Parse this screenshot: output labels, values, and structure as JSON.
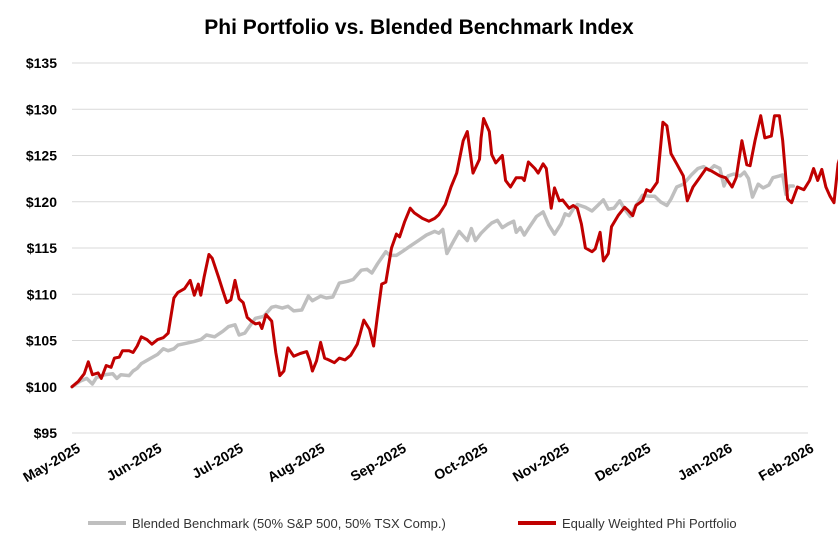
{
  "chart_data": {
    "type": "line",
    "title": "Phi Portfolio vs. Blended Benchmark Index",
    "xlabel": "",
    "ylabel": "",
    "ylim": [
      95,
      135
    ],
    "yticks": [
      95,
      100,
      105,
      110,
      115,
      120,
      125,
      130,
      135
    ],
    "ytick_labels": [
      "$95",
      "$100",
      "$105",
      "$110",
      "$115",
      "$120",
      "$125",
      "$130",
      "$135"
    ],
    "x_range": [
      0,
      9.55
    ],
    "x_ticks": [
      0,
      1,
      2,
      3,
      4,
      5,
      6,
      7,
      8,
      9
    ],
    "x_tick_labels": [
      "May-2025",
      "Jun-2025",
      "Jul-2025",
      "Aug-2025",
      "Sep-2025",
      "Oct-2025",
      "Nov-2025",
      "Dec-2025",
      "Jan-2026",
      "Feb-2026"
    ],
    "grid": true,
    "legend_position": "bottom",
    "series": [
      {
        "name": "Blended Benchmark (50% S&P 500, 50% TSX Comp.)",
        "color": "#bfbfbf",
        "points": [
          [
            0,
            100
          ],
          [
            0.1,
            100.6
          ],
          [
            0.18,
            100.9
          ],
          [
            0.25,
            100.3
          ],
          [
            0.3,
            101
          ],
          [
            0.4,
            101.3
          ],
          [
            0.5,
            101.4
          ],
          [
            0.55,
            100.9
          ],
          [
            0.6,
            101.3
          ],
          [
            0.7,
            101.2
          ],
          [
            0.75,
            101.7
          ],
          [
            0.8,
            102
          ],
          [
            0.85,
            102.5
          ],
          [
            0.95,
            103
          ],
          [
            1.05,
            103.5
          ],
          [
            1.12,
            104.1
          ],
          [
            1.18,
            103.9
          ],
          [
            1.25,
            104.1
          ],
          [
            1.3,
            104.5
          ],
          [
            1.4,
            104.7
          ],
          [
            1.5,
            104.9
          ],
          [
            1.58,
            105.1
          ],
          [
            1.65,
            105.6
          ],
          [
            1.75,
            105.4
          ],
          [
            1.85,
            106
          ],
          [
            1.92,
            106.5
          ],
          [
            2.0,
            106.7
          ],
          [
            2.05,
            105.6
          ],
          [
            2.12,
            105.8
          ],
          [
            2.2,
            106.8
          ],
          [
            2.25,
            107.4
          ],
          [
            2.35,
            107.6
          ],
          [
            2.45,
            108.6
          ],
          [
            2.5,
            108.7
          ],
          [
            2.58,
            108.5
          ],
          [
            2.65,
            108.7
          ],
          [
            2.72,
            108.2
          ],
          [
            2.82,
            108.3
          ],
          [
            2.9,
            109.8
          ],
          [
            2.95,
            109.3
          ],
          [
            3.05,
            109.8
          ],
          [
            3.12,
            109.6
          ],
          [
            3.2,
            109.7
          ],
          [
            3.28,
            111.2
          ],
          [
            3.38,
            111.4
          ],
          [
            3.45,
            111.6
          ],
          [
            3.55,
            112.6
          ],
          [
            3.62,
            112.7
          ],
          [
            3.68,
            112.3
          ],
          [
            3.75,
            113.3
          ],
          [
            3.85,
            114.6
          ],
          [
            3.9,
            114.2
          ],
          [
            3.98,
            114.2
          ],
          [
            4.05,
            114.6
          ],
          [
            4.15,
            115.2
          ],
          [
            4.25,
            115.8
          ],
          [
            4.35,
            116.4
          ],
          [
            4.45,
            116.8
          ],
          [
            4.5,
            116.6
          ],
          [
            4.55,
            117
          ],
          [
            4.6,
            114.4
          ],
          [
            4.68,
            115.7
          ],
          [
            4.75,
            116.8
          ],
          [
            4.8,
            116.3
          ],
          [
            4.85,
            115.8
          ],
          [
            4.9,
            117.1
          ],
          [
            4.95,
            115.8
          ],
          [
            5.02,
            116.6
          ],
          [
            5.1,
            117.3
          ],
          [
            5.15,
            117.7
          ],
          [
            5.22,
            118
          ],
          [
            5.28,
            117.2
          ],
          [
            5.35,
            117.6
          ],
          [
            5.42,
            117.9
          ],
          [
            5.45,
            116.7
          ],
          [
            5.5,
            117.2
          ],
          [
            5.55,
            116.4
          ],
          [
            5.6,
            117.1
          ],
          [
            5.7,
            118.4
          ],
          [
            5.78,
            118.9
          ],
          [
            5.85,
            117.5
          ],
          [
            5.92,
            116.5
          ],
          [
            6.0,
            117.6
          ],
          [
            6.05,
            118.7
          ],
          [
            6.1,
            118.5
          ],
          [
            6.15,
            119.2
          ],
          [
            6.2,
            119.7
          ],
          [
            6.3,
            119.4
          ],
          [
            6.38,
            119
          ],
          [
            6.45,
            119.6
          ],
          [
            6.52,
            120.2
          ],
          [
            6.58,
            119.2
          ],
          [
            6.65,
            119.3
          ],
          [
            6.72,
            120.1
          ],
          [
            6.78,
            119.2
          ],
          [
            6.85,
            118.4
          ],
          [
            6.92,
            119.6
          ],
          [
            7.0,
            120.7
          ],
          [
            7.08,
            120.6
          ],
          [
            7.15,
            120.6
          ],
          [
            7.22,
            120
          ],
          [
            7.3,
            119.6
          ],
          [
            7.35,
            120.3
          ],
          [
            7.42,
            121.6
          ],
          [
            7.5,
            121.9
          ],
          [
            7.6,
            122.9
          ],
          [
            7.68,
            123.6
          ],
          [
            7.75,
            123.8
          ],
          [
            7.82,
            123.4
          ],
          [
            7.88,
            123.9
          ],
          [
            7.95,
            123.6
          ],
          [
            8.0,
            121.7
          ],
          [
            8.05,
            122.8
          ],
          [
            8.12,
            123
          ],
          [
            8.2,
            122.8
          ],
          [
            8.25,
            123.2
          ],
          [
            8.3,
            122.5
          ],
          [
            8.35,
            120.5
          ],
          [
            8.42,
            121.9
          ],
          [
            8.48,
            121.5
          ],
          [
            8.55,
            121.8
          ],
          [
            8.6,
            122.6
          ],
          [
            8.68,
            122.8
          ],
          [
            8.72,
            122.9
          ],
          [
            8.76,
            120.8
          ],
          [
            8.8,
            121.7
          ],
          [
            8.85,
            121.7
          ]
        ]
      },
      {
        "name": "Equally Weighted Phi Portfolio",
        "color": "#c00000",
        "points": [
          [
            0,
            100
          ],
          [
            0.08,
            100.6
          ],
          [
            0.15,
            101.4
          ],
          [
            0.2,
            102.7
          ],
          [
            0.25,
            101.3
          ],
          [
            0.32,
            101.5
          ],
          [
            0.36,
            100.9
          ],
          [
            0.42,
            102.3
          ],
          [
            0.48,
            102.1
          ],
          [
            0.52,
            103.1
          ],
          [
            0.58,
            103.2
          ],
          [
            0.62,
            103.9
          ],
          [
            0.7,
            103.9
          ],
          [
            0.75,
            103.7
          ],
          [
            0.8,
            104.4
          ],
          [
            0.85,
            105.4
          ],
          [
            0.92,
            105.1
          ],
          [
            0.98,
            104.6
          ],
          [
            1.05,
            105.1
          ],
          [
            1.12,
            105.3
          ],
          [
            1.18,
            105.8
          ],
          [
            1.25,
            109.6
          ],
          [
            1.3,
            110.2
          ],
          [
            1.38,
            110.6
          ],
          [
            1.45,
            111.5
          ],
          [
            1.5,
            109.9
          ],
          [
            1.55,
            111.1
          ],
          [
            1.58,
            109.9
          ],
          [
            1.62,
            111.8
          ],
          [
            1.68,
            114.3
          ],
          [
            1.72,
            113.9
          ],
          [
            1.8,
            111.8
          ],
          [
            1.85,
            110.4
          ],
          [
            1.9,
            109.1
          ],
          [
            1.95,
            109.4
          ],
          [
            2.0,
            111.5
          ],
          [
            2.05,
            109.5
          ],
          [
            2.1,
            109.1
          ],
          [
            2.15,
            107.5
          ],
          [
            2.2,
            107.1
          ],
          [
            2.25,
            106.8
          ],
          [
            2.3,
            106.9
          ],
          [
            2.33,
            106.3
          ],
          [
            2.38,
            107.8
          ],
          [
            2.45,
            107.1
          ],
          [
            2.5,
            103.7
          ],
          [
            2.55,
            101.2
          ],
          [
            2.6,
            101.7
          ],
          [
            2.65,
            104.2
          ],
          [
            2.72,
            103.3
          ],
          [
            2.8,
            103.6
          ],
          [
            2.88,
            103.8
          ],
          [
            2.92,
            102.8
          ],
          [
            2.95,
            101.7
          ],
          [
            3.0,
            102.8
          ],
          [
            3.05,
            104.8
          ],
          [
            3.1,
            103.1
          ],
          [
            3.15,
            102.9
          ],
          [
            3.22,
            102.6
          ],
          [
            3.28,
            103.1
          ],
          [
            3.35,
            102.9
          ],
          [
            3.42,
            103.4
          ],
          [
            3.5,
            104.6
          ],
          [
            3.58,
            107.2
          ],
          [
            3.65,
            106.2
          ],
          [
            3.7,
            104.4
          ],
          [
            3.75,
            107.8
          ],
          [
            3.8,
            111.1
          ],
          [
            3.85,
            111.3
          ],
          [
            3.92,
            115
          ],
          [
            3.98,
            116.5
          ],
          [
            4.02,
            116.2
          ],
          [
            4.08,
            117.8
          ],
          [
            4.15,
            119.3
          ],
          [
            4.2,
            118.8
          ],
          [
            4.3,
            118.2
          ],
          [
            4.38,
            117.9
          ],
          [
            4.45,
            118.2
          ],
          [
            4.5,
            118.6
          ],
          [
            4.58,
            119.7
          ],
          [
            4.65,
            121.6
          ],
          [
            4.72,
            123.1
          ],
          [
            4.8,
            126.6
          ],
          [
            4.85,
            127.6
          ],
          [
            4.92,
            123.1
          ],
          [
            5.0,
            124.6
          ],
          [
            5.02,
            126.9
          ],
          [
            5.05,
            129
          ],
          [
            5.12,
            127.6
          ],
          [
            5.15,
            125.1
          ],
          [
            5.2,
            124.2
          ],
          [
            5.28,
            125
          ],
          [
            5.32,
            122.3
          ],
          [
            5.38,
            121.6
          ],
          [
            5.45,
            122.6
          ],
          [
            5.52,
            122.6
          ],
          [
            5.55,
            122.3
          ],
          [
            5.6,
            124.3
          ],
          [
            5.68,
            123.6
          ],
          [
            5.72,
            123.1
          ],
          [
            5.78,
            124.1
          ],
          [
            5.82,
            123.6
          ],
          [
            5.88,
            119.3
          ],
          [
            5.92,
            121.5
          ],
          [
            5.98,
            120.1
          ],
          [
            6.02,
            120.2
          ],
          [
            6.1,
            119.3
          ],
          [
            6.15,
            119.6
          ],
          [
            6.2,
            119.3
          ],
          [
            6.25,
            117.6
          ],
          [
            6.3,
            115
          ],
          [
            6.38,
            114.6
          ],
          [
            6.42,
            114.9
          ],
          [
            6.48,
            116.7
          ],
          [
            6.52,
            113.6
          ],
          [
            6.58,
            114.4
          ],
          [
            6.62,
            117.3
          ],
          [
            6.7,
            118.5
          ],
          [
            6.78,
            119.4
          ],
          [
            6.82,
            119.1
          ],
          [
            6.88,
            118.5
          ],
          [
            6.92,
            119.6
          ],
          [
            7.0,
            120.1
          ],
          [
            7.05,
            121.3
          ],
          [
            7.1,
            121.1
          ],
          [
            7.18,
            122.1
          ],
          [
            7.25,
            128.6
          ],
          [
            7.3,
            128.2
          ],
          [
            7.35,
            125.2
          ],
          [
            7.42,
            124.1
          ],
          [
            7.5,
            122.8
          ],
          [
            7.55,
            120.1
          ],
          [
            7.62,
            121.6
          ],
          [
            7.7,
            122.6
          ],
          [
            7.78,
            123.6
          ],
          [
            7.85,
            123.3
          ],
          [
            7.95,
            122.8
          ],
          [
            8.02,
            122.6
          ],
          [
            8.1,
            121.6
          ],
          [
            8.15,
            122.6
          ],
          [
            8.22,
            126.6
          ],
          [
            8.28,
            124
          ],
          [
            8.32,
            123.9
          ],
          [
            8.38,
            126.6
          ],
          [
            8.45,
            129.3
          ],
          [
            8.5,
            126.9
          ],
          [
            8.58,
            127.1
          ],
          [
            8.62,
            129.3
          ],
          [
            8.68,
            129.3
          ],
          [
            8.72,
            126.6
          ],
          [
            8.78,
            120.3
          ],
          [
            8.83,
            119.9
          ],
          [
            8.9,
            121.6
          ],
          [
            8.98,
            121.3
          ],
          [
            9.05,
            122.3
          ],
          [
            9.1,
            123.6
          ],
          [
            9.15,
            122.3
          ],
          [
            9.2,
            123.5
          ],
          [
            9.25,
            121.6
          ],
          [
            9.3,
            120.6
          ],
          [
            9.35,
            119.9
          ],
          [
            9.4,
            124.1
          ],
          [
            9.45,
            125.6
          ],
          [
            9.5,
            124.6
          ],
          [
            9.55,
            123.6
          ],
          [
            9.62,
            124.1
          ],
          [
            9.68,
            124.8
          ]
        ]
      }
    ]
  }
}
